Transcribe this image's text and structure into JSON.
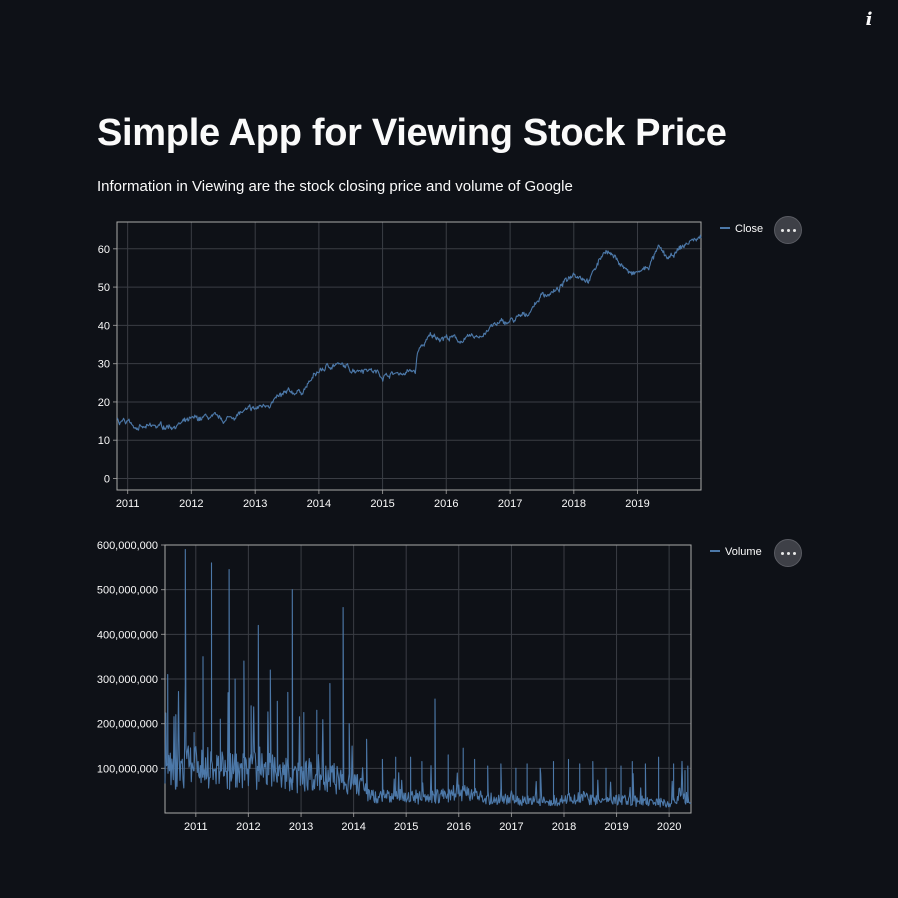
{
  "header": {
    "info_icon": "info-icon"
  },
  "page": {
    "title": "Simple App for Viewing Stock Price",
    "subtitle": "Information in Viewing are the stock closing price and volume of Google"
  },
  "colors": {
    "background": "#0e1117",
    "line": "#4c78a8",
    "grid": "#3a3d44",
    "text": "#fafafa"
  },
  "menu_icon": "more-horizontal-icon",
  "chart_data": [
    {
      "type": "line",
      "series": [
        {
          "name": "Close",
          "x": [
            "2010-06-01",
            "2010-09-01",
            "2011-01-01",
            "2011-04-01",
            "2011-07-01",
            "2011-10-01",
            "2012-01-01",
            "2012-04-01",
            "2012-07-01",
            "2012-10-01",
            "2013-01-01",
            "2013-04-01",
            "2013-07-01",
            "2013-10-01",
            "2014-01-01",
            "2014-04-01",
            "2014-07-01",
            "2014-10-01",
            "2015-01-01",
            "2015-04-01",
            "2015-07-10",
            "2015-07-20",
            "2015-10-01",
            "2016-01-01",
            "2016-04-01",
            "2016-07-01",
            "2016-10-01",
            "2017-01-01",
            "2017-04-01",
            "2017-07-01",
            "2017-10-01",
            "2018-01-01",
            "2018-04-01",
            "2018-07-01",
            "2018-10-01",
            "2018-12-01",
            "2019-03-01",
            "2019-05-01",
            "2019-07-01",
            "2019-09-01",
            "2019-11-01",
            "2019-12-31"
          ],
          "y": [
            15.5,
            14.5,
            15,
            13,
            13.5,
            14,
            15,
            16,
            15,
            17,
            18,
            20,
            22,
            23,
            28,
            30,
            28.5,
            29,
            27,
            27.5,
            28,
            33,
            37,
            37,
            36,
            37,
            40,
            41,
            42.5,
            48,
            49,
            54,
            52,
            60,
            56,
            53,
            55,
            60,
            57,
            60,
            62,
            63
          ]
        }
      ],
      "xlabel": "",
      "ylabel": "",
      "x_ticks": [
        "2011",
        "2012",
        "2013",
        "2014",
        "2015",
        "2016",
        "2017",
        "2018",
        "2019"
      ],
      "y_ticks": [
        "0",
        "10",
        "20",
        "30",
        "40",
        "50",
        "60"
      ],
      "ylim": [
        -3,
        67
      ],
      "xlim": [
        "2010-11-01",
        "2019-12-31"
      ],
      "grid": true,
      "legend": "top-right"
    },
    {
      "type": "line",
      "series": [
        {
          "name": "Volume",
          "x": [
            "2010-06-01",
            "2010-07-15",
            "2010-09-15",
            "2010-11-15",
            "2011-02-01",
            "2011-04-15",
            "2011-07-01",
            "2011-09-15",
            "2011-12-01",
            "2012-02-15",
            "2012-05-01",
            "2012-07-15",
            "2012-10-01",
            "2012-12-15",
            "2013-03-01",
            "2013-05-15",
            "2013-08-01",
            "2013-10-15",
            "2014-01-01",
            "2014-03-15",
            "2014-05-01",
            "2014-09-01",
            "2015-01-01",
            "2015-05-01",
            "2015-09-01",
            "2016-01-01",
            "2016-05-01",
            "2016-09-01",
            "2017-01-01",
            "2017-05-01",
            "2017-09-01",
            "2018-01-01",
            "2018-05-01",
            "2018-09-01",
            "2019-01-01",
            "2019-05-01",
            "2019-09-01",
            "2020-01-01",
            "2020-03-15",
            "2020-06-01"
          ],
          "y": [
            120000000,
            100000000,
            90000000,
            110000000,
            100000000,
            95000000,
            105000000,
            90000000,
            100000000,
            95000000,
            100000000,
            85000000,
            90000000,
            80000000,
            85000000,
            75000000,
            80000000,
            70000000,
            65000000,
            60000000,
            40000000,
            35000000,
            38000000,
            35000000,
            40000000,
            45000000,
            38000000,
            32000000,
            30000000,
            28000000,
            27000000,
            30000000,
            32000000,
            28000000,
            30000000,
            27000000,
            25000000,
            22000000,
            40000000,
            30000000
          ]
        }
      ],
      "xlabel": "",
      "ylabel": "",
      "x_ticks": [
        "2011",
        "2012",
        "2013",
        "2014",
        "2015",
        "2016",
        "2017",
        "2018",
        "2019",
        "2020"
      ],
      "y_ticks": [
        "100,000,000",
        "200,000,000",
        "300,000,000",
        "400,000,000",
        "500,000,000",
        "600,000,000"
      ],
      "ylim": [
        0,
        600000000
      ],
      "xlim": [
        "2010-06-01",
        "2020-06-01"
      ],
      "spikes": [
        [
          "2010-06-20",
          310000000
        ],
        [
          "2010-08-15",
          220000000
        ],
        [
          "2010-10-20",
          590000000
        ],
        [
          "2010-12-20",
          180000000
        ],
        [
          "2011-02-20",
          350000000
        ],
        [
          "2011-04-20",
          560000000
        ],
        [
          "2011-06-20",
          210000000
        ],
        [
          "2011-08-20",
          545000000
        ],
        [
          "2011-10-01",
          300000000
        ],
        [
          "2011-12-01",
          340000000
        ],
        [
          "2012-01-20",
          240000000
        ],
        [
          "2012-03-10",
          420000000
        ],
        [
          "2012-06-01",
          320000000
        ],
        [
          "2012-07-20",
          250000000
        ],
        [
          "2012-10-01",
          270000000
        ],
        [
          "2012-11-01",
          500000000
        ],
        [
          "2013-01-20",
          225000000
        ],
        [
          "2013-04-20",
          230000000
        ],
        [
          "2013-07-20",
          290000000
        ],
        [
          "2013-10-20",
          460000000
        ],
        [
          "2013-12-01",
          200000000
        ],
        [
          "2014-04-01",
          165000000
        ],
        [
          "2014-07-20",
          120000000
        ],
        [
          "2014-10-20",
          125000000
        ],
        [
          "2015-02-01",
          125000000
        ],
        [
          "2015-04-20",
          115000000
        ],
        [
          "2015-07-20",
          255000000
        ],
        [
          "2015-10-20",
          130000000
        ],
        [
          "2016-02-01",
          145000000
        ],
        [
          "2016-04-20",
          120000000
        ],
        [
          "2016-07-20",
          105000000
        ],
        [
          "2016-10-20",
          110000000
        ],
        [
          "2017-02-01",
          100000000
        ],
        [
          "2017-04-20",
          110000000
        ],
        [
          "2017-07-20",
          100000000
        ],
        [
          "2017-10-20",
          115000000
        ],
        [
          "2018-02-01",
          120000000
        ],
        [
          "2018-04-20",
          110000000
        ],
        [
          "2018-07-20",
          115000000
        ],
        [
          "2018-10-20",
          100000000
        ],
        [
          "2019-02-01",
          105000000
        ],
        [
          "2019-04-20",
          115000000
        ],
        [
          "2019-07-20",
          110000000
        ],
        [
          "2019-10-20",
          125000000
        ],
        [
          "2020-02-01",
          110000000
        ],
        [
          "2020-04-20",
          95000000
        ],
        [
          "2020-05-10",
          105000000
        ]
      ],
      "grid": true,
      "legend": "top-right"
    }
  ]
}
